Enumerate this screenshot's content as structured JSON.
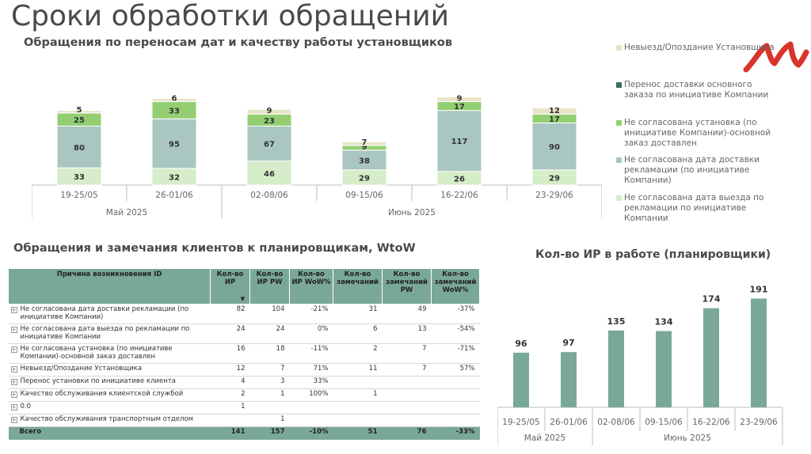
{
  "page": {
    "title": "Сроки обработки обращений",
    "subtitle_chart1": "Обращения по переносам дат и качеству работы установщиков",
    "subtitle_table": "Обращения и замечания клиентов к планировщикам, WtoW",
    "subtitle_chart2": "Кол-во ИР в работе (планировщики)"
  },
  "legend": [
    {
      "label": "Невыезд/Опоздание Установщика",
      "color": "#e8e4c8"
    },
    {
      "label": "Перенос доставки основного заказа по инициативе Компании",
      "color": "#3c6e56"
    },
    {
      "label": "Не согласована установка (по инициативе Компании)-основной заказ доставлен",
      "color": "#93cf72"
    },
    {
      "label": "Не согласована дата доставки рекламации (по инициативе Компании)",
      "color": "#a9c7c0"
    },
    {
      "label": "Не согласована дата выезда по рекламации по инициативе Компании",
      "color": "#d5edc8"
    }
  ],
  "chart_data": [
    {
      "type": "bar",
      "stacked": true,
      "categories": [
        "19-25/05",
        "26-01/06",
        "02-08/06",
        "09-15/06",
        "16-22/06",
        "23-29/06"
      ],
      "groups": [
        {
          "label": "Май 2025",
          "span": 2
        },
        {
          "label": "Июнь 2025",
          "span": 4
        }
      ],
      "series": [
        {
          "name": "Не согласована дата выезда по рекламации по инициативе Компании",
          "color": "#d5edc8",
          "values": [
            33,
            32,
            46,
            29,
            26,
            29
          ]
        },
        {
          "name": "Не согласована дата доставки рекламации (по инициативе Компании)",
          "color": "#a9c7c0",
          "values": [
            80,
            95,
            67,
            38,
            117,
            90
          ]
        },
        {
          "name": "Не согласована установка (по инициативе Компании)-основной заказ доставлен",
          "color": "#93cf72",
          "values": [
            25,
            33,
            23,
            9,
            17,
            17
          ]
        },
        {
          "name": "Перенос доставки основного заказа по инициативе Компании",
          "color": "#3c6e56",
          "values": [
            0,
            0,
            0,
            0,
            0,
            0
          ]
        },
        {
          "name": "Невыезд/Опоздание Установщика",
          "color": "#e8e4c8",
          "values": [
            5,
            6,
            9,
            7,
            9,
            12
          ]
        }
      ],
      "title": "Обращения по переносам дат и качеству работы установщиков",
      "legend_position": "right"
    },
    {
      "type": "bar",
      "categories": [
        "19-25/05",
        "26-01/06",
        "02-08/06",
        "09-15/06",
        "16-22/06",
        "23-29/06"
      ],
      "groups": [
        {
          "label": "Май 2025",
          "span": 2
        },
        {
          "label": "Июнь 2025",
          "span": 4
        }
      ],
      "values": [
        96,
        97,
        135,
        134,
        174,
        191
      ],
      "color": "#7aa898",
      "title": "Кол-во ИР в работе (планировщики)"
    }
  ],
  "table": {
    "headers": [
      "Причина возникновения ID",
      "Кол-во ИР",
      "Кол-во ИР PW",
      "Кол-во ИР WoW%",
      "Кол-во замечаний",
      "Кол-во замечаний PW",
      "Кол-во замечаний WoW%"
    ],
    "rows": [
      {
        "label": "Не согласована дата доставки рекламации (по инициативе Компании)",
        "ir": "82",
        "ir_pw": "104",
        "ir_wow": "-21%",
        "ir_wow_sign": "pos",
        "rem": "31",
        "rem_pw": "49",
        "rem_wow": "-37%",
        "rem_wow_sign": "pos"
      },
      {
        "label": "Не согласована дата выезда по рекламации по инициативе Компании",
        "ir": "24",
        "ir_pw": "24",
        "ir_wow": "0%",
        "ir_wow_sign": "pos",
        "rem": "6",
        "rem_pw": "13",
        "rem_wow": "-54%",
        "rem_wow_sign": "pos"
      },
      {
        "label": "Не согласована установка (по инициативе Компании)-основной заказ доставлен",
        "ir": "16",
        "ir_pw": "18",
        "ir_wow": "-11%",
        "ir_wow_sign": "pos",
        "rem": "2",
        "rem_pw": "7",
        "rem_wow": "-71%",
        "rem_wow_sign": "pos"
      },
      {
        "label": "Невыезд/Опоздание Установщика",
        "ir": "12",
        "ir_pw": "7",
        "ir_wow": "71%",
        "ir_wow_sign": "neg",
        "rem": "11",
        "rem_pw": "7",
        "rem_wow": "57%",
        "rem_wow_sign": "neg"
      },
      {
        "label": "Перенос установки по инициативе клиента",
        "ir": "4",
        "ir_pw": "3",
        "ir_wow": "33%",
        "ir_wow_sign": "neg",
        "rem": "",
        "rem_pw": "",
        "rem_wow": "",
        "rem_wow_sign": "pos"
      },
      {
        "label": "Качество обслуживания клиентской службой",
        "ir": "2",
        "ir_pw": "1",
        "ir_wow": "100%",
        "ir_wow_sign": "neg",
        "rem": "1",
        "rem_pw": "",
        "rem_wow": "",
        "rem_wow_sign": "pos"
      },
      {
        "label": "0.0",
        "ir": "1",
        "ir_pw": "",
        "ir_wow": "",
        "ir_wow_sign": "pos",
        "rem": "",
        "rem_pw": "",
        "rem_wow": "",
        "rem_wow_sign": "pos"
      },
      {
        "label": "Качество обслуживания транспортным отделом",
        "ir": "",
        "ir_pw": "1",
        "ir_wow": "",
        "ir_wow_sign": "pos",
        "rem": "",
        "rem_pw": "",
        "rem_wow": "",
        "rem_wow_sign": "pos"
      }
    ],
    "total": {
      "label": "Всего",
      "ir": "141",
      "ir_pw": "157",
      "ir_wow": "-10%",
      "rem": "51",
      "rem_pw": "76",
      "rem_wow": "-33%"
    }
  }
}
